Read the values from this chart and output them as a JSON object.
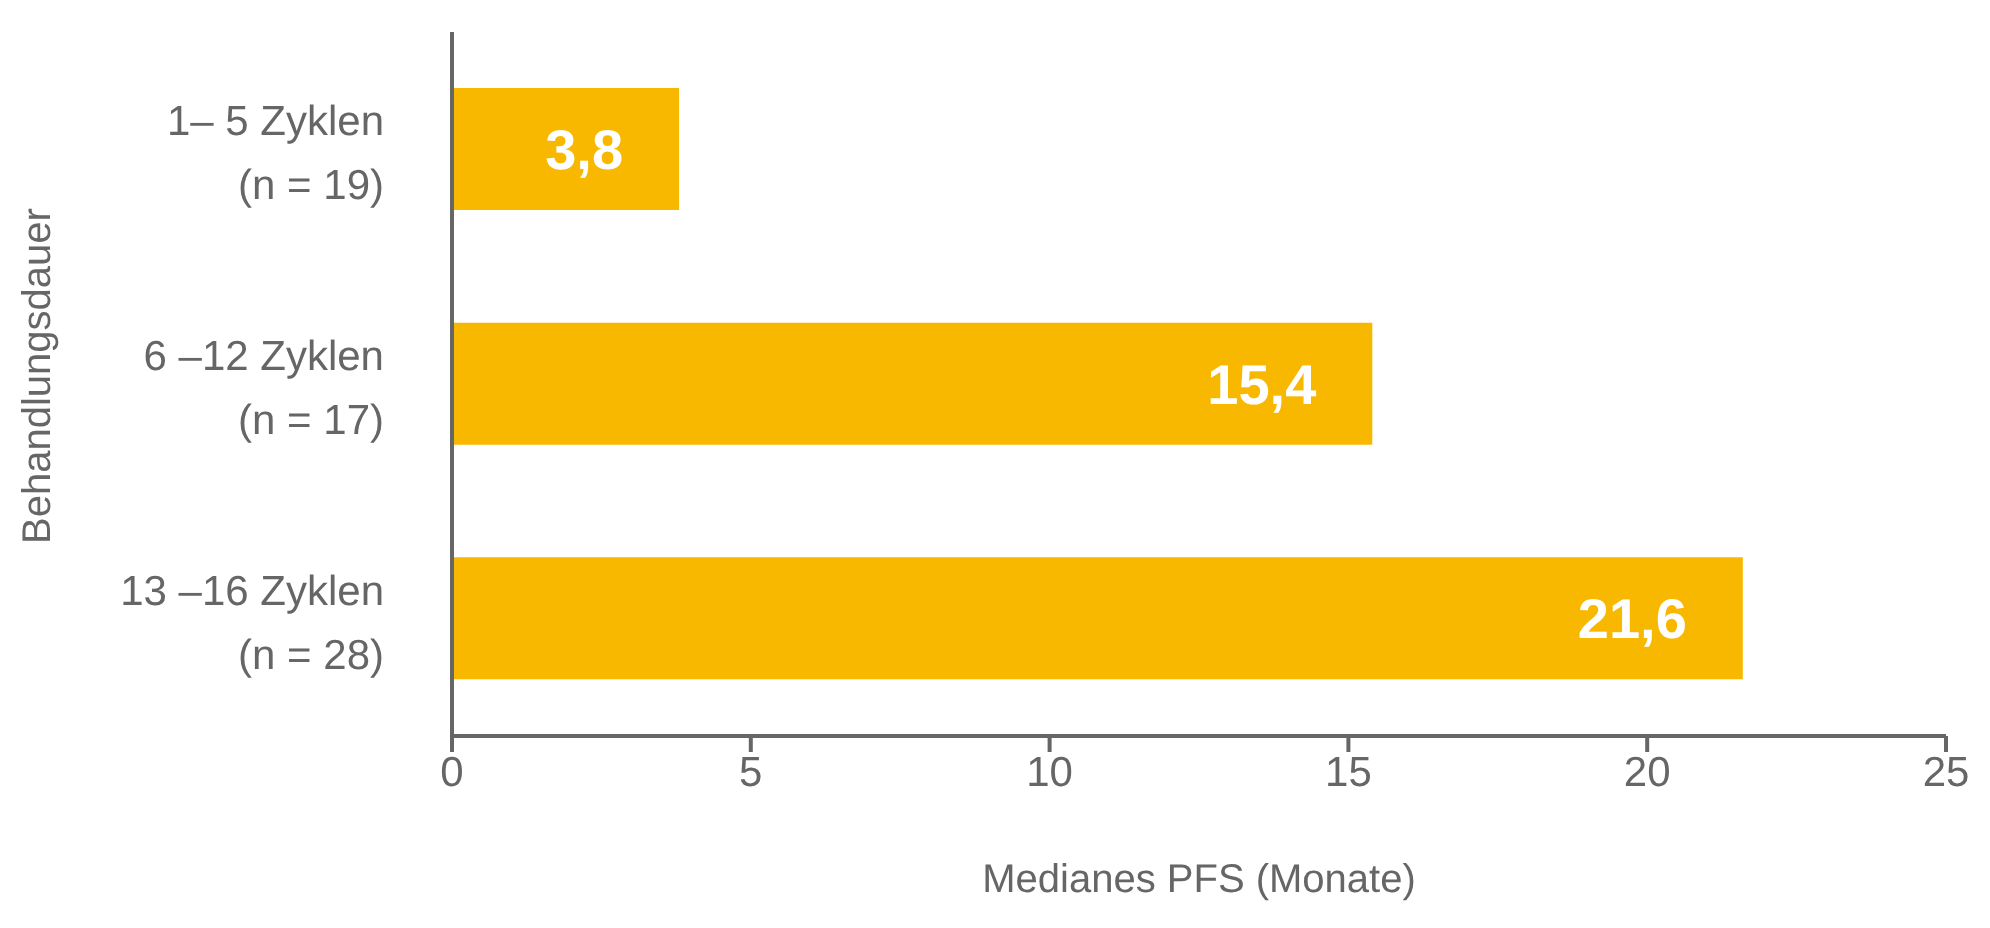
{
  "chart_data": {
    "type": "bar",
    "orientation": "horizontal",
    "xlabel": "Medianes PFS (Monate)",
    "ylabel": "Behandlungsdauer",
    "categories": [
      "1– 5 Zyklen\n(n = 19)",
      "6 –12 Zyklen\n(n = 17)",
      "13 –16 Zyklen\n(n = 28)"
    ],
    "values": [
      3.8,
      15.4,
      21.6
    ],
    "color": "#f9b800",
    "value_labels": [
      "3,8",
      "15,4",
      "21,6"
    ],
    "xlim": [
      0,
      25
    ],
    "xticks": [
      0,
      5,
      10,
      15,
      20,
      25
    ]
  }
}
